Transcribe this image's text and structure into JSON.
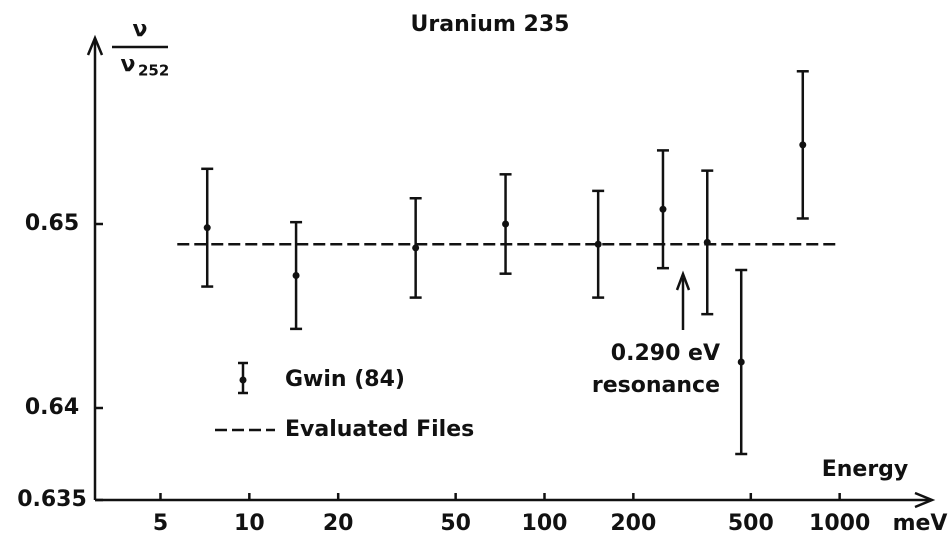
{
  "chart_data": {
    "type": "errorbar",
    "title": "Uranium 235",
    "y_label": {
      "numerator": "ν",
      "denominator": "ν",
      "subscript": "252"
    },
    "x_label": "Energy",
    "x_unit": "meV",
    "xscale": "log",
    "xlim": [
      3,
      1800
    ],
    "xticks": [
      5,
      10,
      20,
      50,
      100,
      200,
      500,
      1000
    ],
    "ylim": [
      0.635,
      0.66
    ],
    "yticks": [
      0.635,
      0.64,
      0.65
    ],
    "legend": "lower left",
    "annotation": {
      "line1": "0.290 eV",
      "line2": "resonance"
    },
    "series": [
      {
        "name": "Gwin (84)",
        "color": "#111111",
        "style": "errorbar",
        "x": [
          7.2,
          14.4,
          36.6,
          73.8,
          152,
          252,
          356,
          464,
          750
        ],
        "values": [
          0.6498,
          0.6472,
          0.6487,
          0.65,
          0.6489,
          0.6508,
          0.649,
          0.6425,
          0.6543
        ],
        "errors": [
          0.0032,
          0.0029,
          0.0027,
          0.0027,
          0.0029,
          0.0032,
          0.0039,
          0.005,
          0.004
        ]
      },
      {
        "name": "Evaluated Files",
        "color": "#111111",
        "style": "dashed",
        "x": [
          5.7,
          1000
        ],
        "values": [
          0.6489,
          0.6489
        ]
      }
    ]
  }
}
